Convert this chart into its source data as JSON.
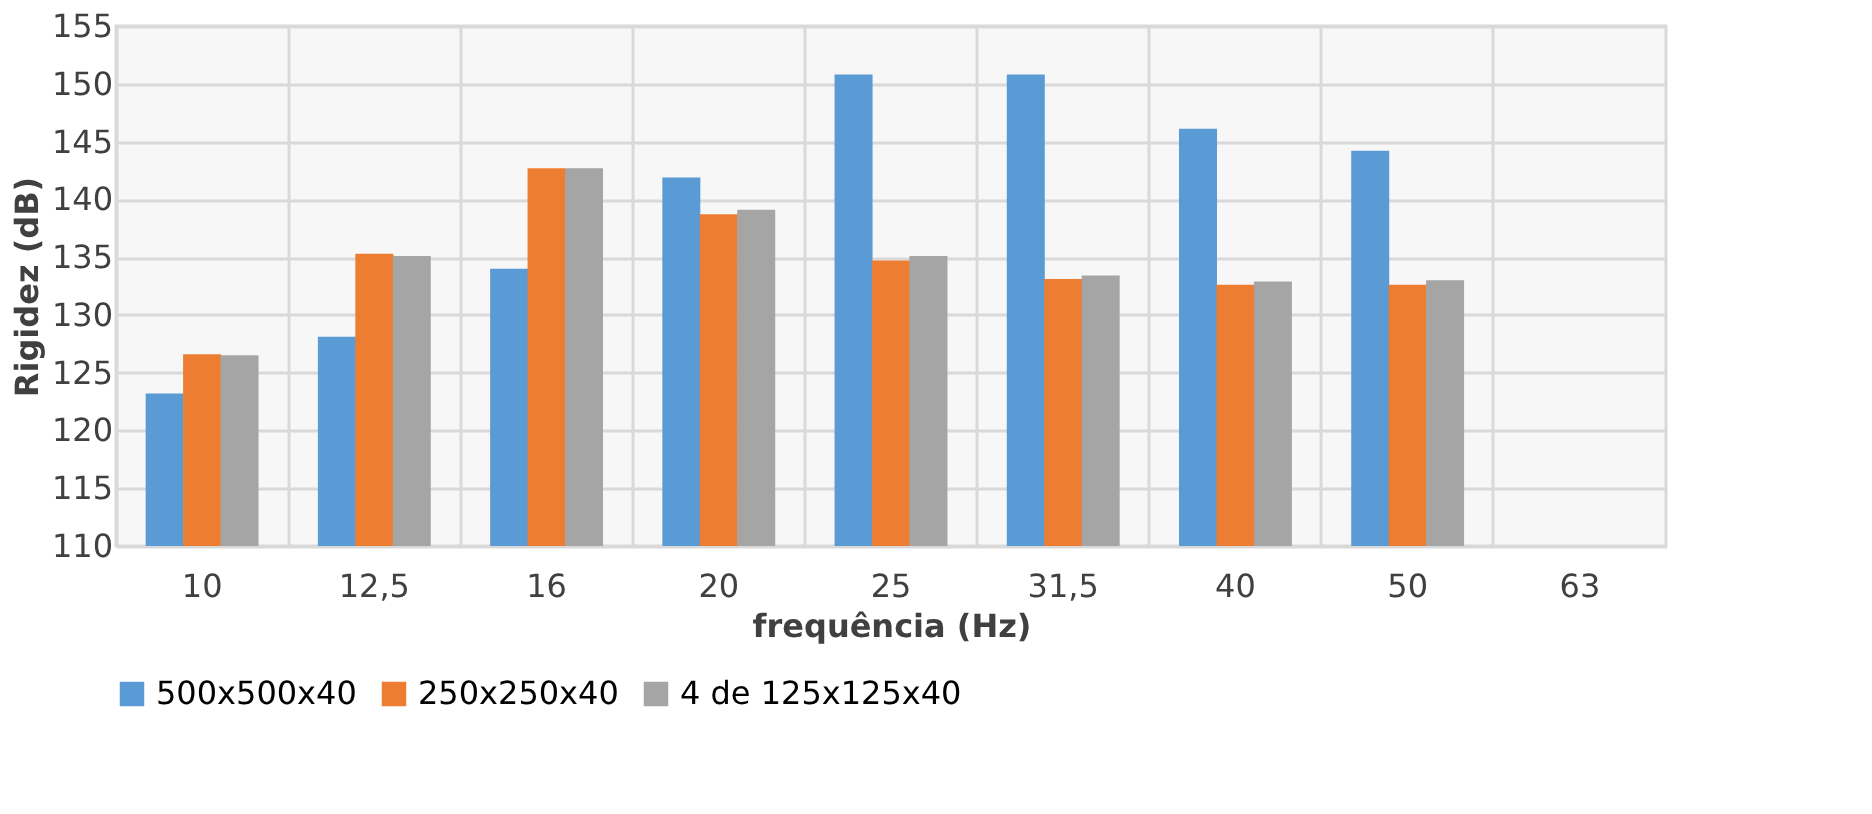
{
  "chart_data": {
    "type": "bar",
    "xlabel": "frequência (Hz)",
    "ylabel": "Rigidez (dB)",
    "categories": [
      "10",
      "12,5",
      "16",
      "20",
      "25",
      "31,5",
      "40",
      "50",
      "63"
    ],
    "series": [
      {
        "name": "500x500x40",
        "color": "#5b9bd5",
        "values": [
          123.2,
          128.1,
          134.0,
          141.9,
          150.8,
          150.8,
          146.1,
          144.2,
          null
        ]
      },
      {
        "name": "250x250x40",
        "color": "#ed7d31",
        "values": [
          126.6,
          135.3,
          142.7,
          138.7,
          134.7,
          133.1,
          132.6,
          132.6,
          null
        ]
      },
      {
        "name": "4 de 125x125x40",
        "color": "#a5a5a5",
        "values": [
          126.5,
          135.1,
          142.7,
          139.1,
          135.1,
          133.4,
          132.9,
          133.0,
          null
        ]
      }
    ],
    "ylim": [
      110,
      155
    ],
    "yticks": [
      110,
      115,
      120,
      125,
      130,
      135,
      140,
      145,
      150,
      155
    ],
    "grid": true,
    "legend": "bottom"
  }
}
